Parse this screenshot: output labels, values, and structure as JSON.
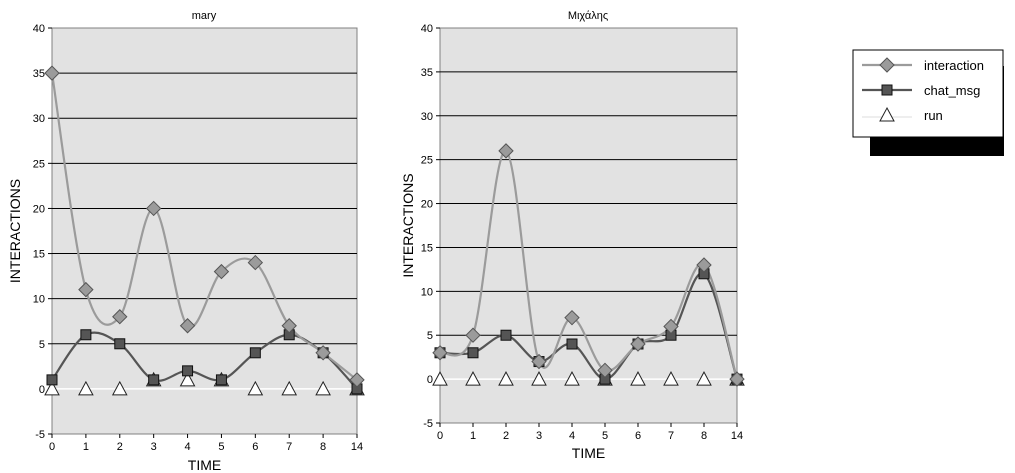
{
  "chart_data": [
    {
      "type": "line",
      "title": "mary",
      "xlabel": "TIME",
      "ylabel": "INTERACTIONS",
      "categories": [
        "0",
        "1",
        "2",
        "3",
        "4",
        "5",
        "6",
        "7",
        "8",
        "14"
      ],
      "ylim": [
        -5,
        40
      ],
      "yticks": [
        -5,
        0,
        5,
        10,
        15,
        20,
        25,
        30,
        35,
        40
      ],
      "grid": true,
      "series": [
        {
          "name": "interaction",
          "color": "#9b9b9b",
          "marker": "diamond",
          "values": [
            35,
            11,
            8,
            20,
            7,
            13,
            14,
            7,
            4,
            1
          ]
        },
        {
          "name": "chat_msg",
          "color": "#555555",
          "marker": "square",
          "values": [
            1,
            6,
            5,
            1,
            2,
            1,
            4,
            6,
            4,
            0
          ]
        },
        {
          "name": "run",
          "color": "#ffffff",
          "marker": "triangle",
          "values": [
            0,
            0,
            0,
            1,
            1,
            1,
            0,
            0,
            0,
            0
          ]
        }
      ]
    },
    {
      "type": "line",
      "title": "Μιχάλης",
      "xlabel": "TIME",
      "ylabel": "INTERACTIONS",
      "categories": [
        "0",
        "1",
        "2",
        "3",
        "4",
        "5",
        "6",
        "7",
        "8",
        "14"
      ],
      "ylim": [
        -5,
        40
      ],
      "yticks": [
        -5,
        0,
        5,
        10,
        15,
        20,
        25,
        30,
        35,
        40
      ],
      "grid": true,
      "series": [
        {
          "name": "interaction",
          "color": "#9b9b9b",
          "marker": "diamond",
          "values": [
            3,
            5,
            26,
            2,
            7,
            1,
            4,
            6,
            13,
            0
          ]
        },
        {
          "name": "chat_msg",
          "color": "#555555",
          "marker": "square",
          "values": [
            3,
            3,
            5,
            2,
            4,
            0,
            4,
            5,
            12,
            0
          ]
        },
        {
          "name": "run",
          "color": "#ffffff",
          "marker": "triangle",
          "values": [
            0,
            0,
            0,
            0,
            0,
            0,
            0,
            0,
            0,
            0
          ]
        }
      ]
    }
  ],
  "legend": {
    "placement": "top-right",
    "items": [
      {
        "label": "interaction",
        "marker": "diamond",
        "color": "#9b9b9b"
      },
      {
        "label": "chat_msg",
        "marker": "square",
        "color": "#555555"
      },
      {
        "label": "run",
        "marker": "triangle",
        "color": "#ffffff"
      }
    ]
  }
}
